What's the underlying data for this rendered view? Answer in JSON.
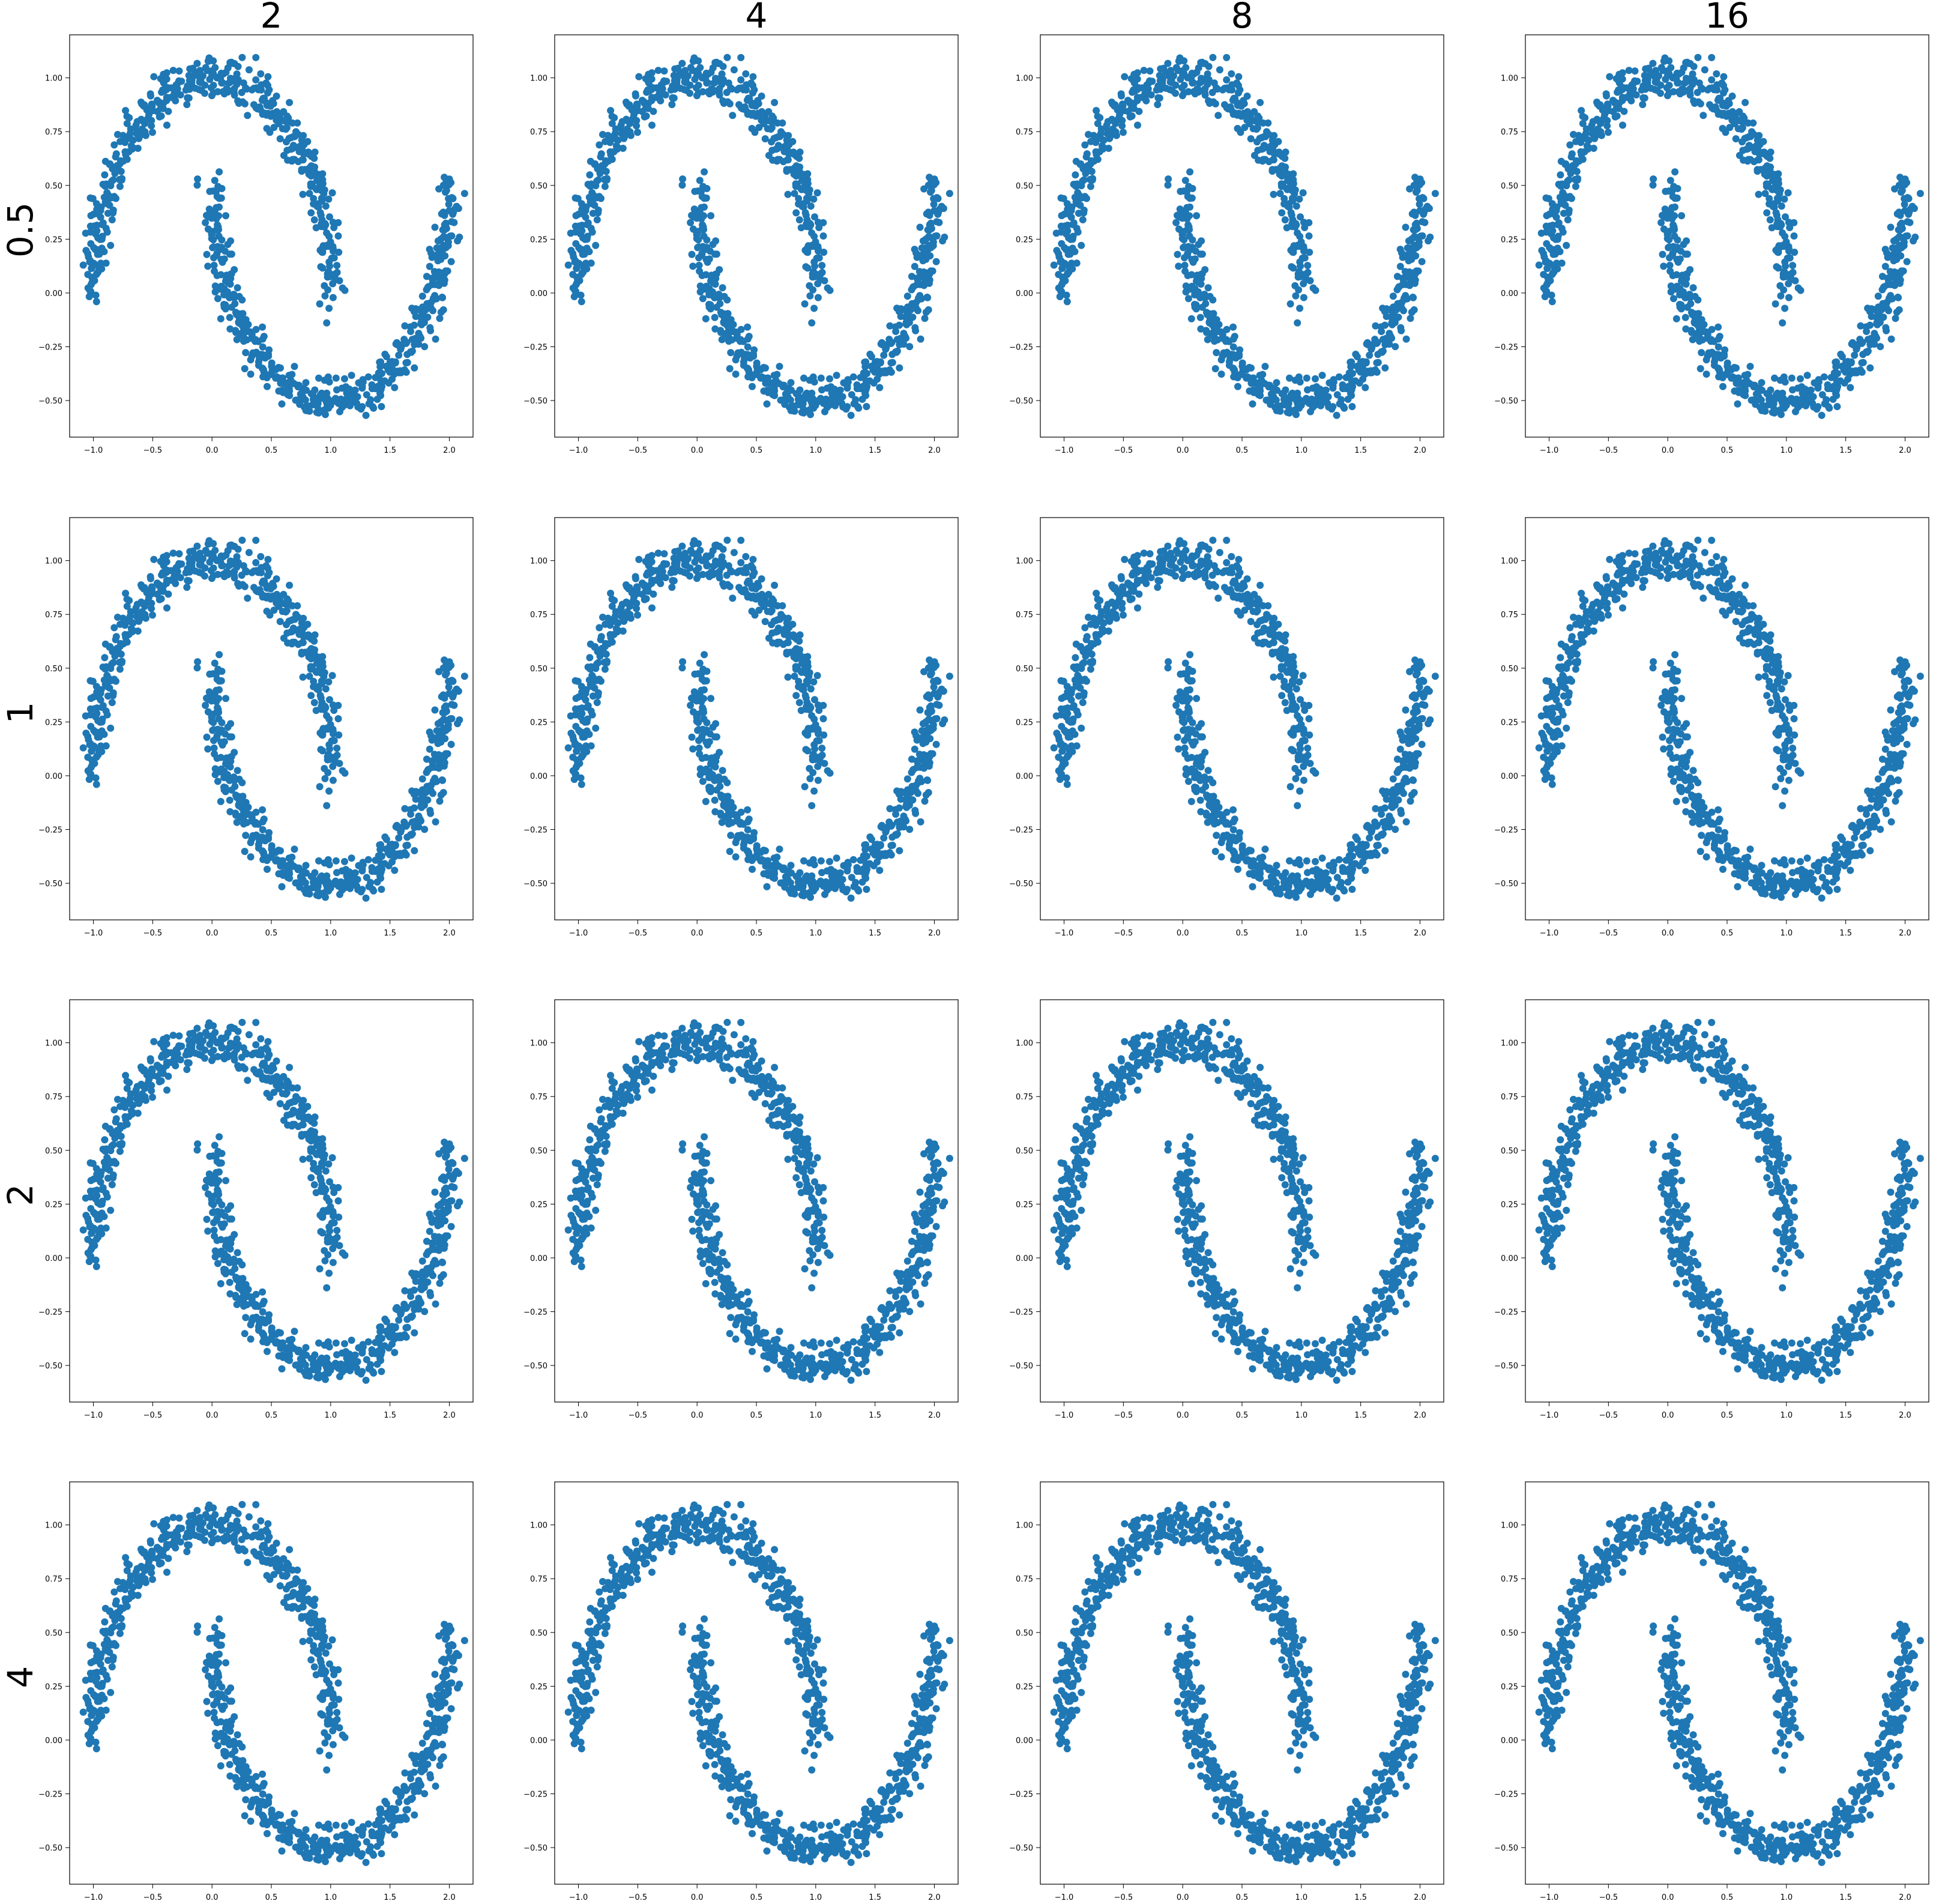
{
  "figure": {
    "column_titles": [
      "2",
      "4",
      "8",
      "16"
    ],
    "row_titles": [
      "0.5",
      "1",
      "2",
      "4"
    ]
  },
  "colors": {
    "point": "#1f77b4",
    "frame": "#000000",
    "background": "#ffffff"
  },
  "chart_data": {
    "type": "scatter",
    "layout": "grid 4x4, identical two-moons scatter in every panel",
    "xlim": [
      -1.2,
      2.2
    ],
    "ylim": [
      -0.67,
      1.2
    ],
    "x_ticks": [
      -1.0,
      -0.5,
      0.0,
      0.5,
      1.0,
      1.5,
      2.0
    ],
    "x_tick_labels": [
      "−1.0",
      "−0.5",
      "0.0",
      "0.5",
      "1.0",
      "1.5",
      "2.0"
    ],
    "y_ticks": [
      -0.5,
      -0.25,
      0.0,
      0.25,
      0.5,
      0.75,
      1.0
    ],
    "y_tick_labels": [
      "−0.50",
      "−0.25",
      "0.00",
      "0.25",
      "0.50",
      "0.75",
      "1.00"
    ],
    "grid": false,
    "series": [
      {
        "description_of_shape": "two interleaving half-moons",
        "upper_moon": {
          "center": [
            0.0,
            0.0
          ],
          "radius": 1.0,
          "angle_range_deg": [
            0,
            180
          ],
          "noise": 0.05
        },
        "lower_moon": {
          "center": [
            1.0,
            0.5
          ],
          "radius": 1.0,
          "angle_range_deg": [
            180,
            360
          ],
          "noise": 0.05
        },
        "n_points_per_moon": 500
      }
    ]
  }
}
